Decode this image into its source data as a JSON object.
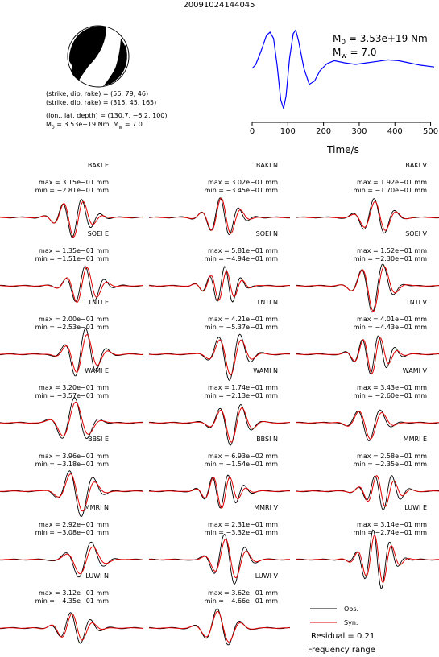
{
  "title": "20091024144045",
  "mechanism": {
    "lines": [
      "(strike, dip, rake) = (56, 79, 46)",
      "(strike, dip, rake) = (315, 45, 165)",
      "(lon., lat, depth) = (130.7, −6.2, 100)"
    ],
    "moment_line": [
      "M",
      "0",
      " = 3.53e+19 Nm, M",
      "w",
      " = 7.0"
    ]
  },
  "chart_data": {
    "type": "line",
    "xlabel": "Time/s",
    "xlim": [
      0,
      510
    ],
    "xticks": [
      0,
      100,
      200,
      300,
      400,
      500
    ],
    "color": "#0000ff",
    "annotation_moment": [
      "M",
      "0",
      " = 3.53e+19 Nm"
    ],
    "annotation_magnitude": [
      "M",
      "w",
      " = 7.0"
    ],
    "x": [
      0,
      10,
      25,
      40,
      50,
      60,
      70,
      80,
      88,
      95,
      105,
      115,
      122,
      130,
      145,
      160,
      175,
      190,
      210,
      230,
      260,
      290,
      320,
      350,
      380,
      410,
      440,
      470,
      510
    ],
    "values": [
      0,
      0.1,
      0.47,
      0.89,
      0.98,
      0.81,
      0.09,
      -0.85,
      -1.09,
      -0.75,
      0.28,
      0.94,
      1.04,
      0.75,
      0,
      -0.43,
      -0.34,
      -0.06,
      0.13,
      0.21,
      0.15,
      0.11,
      0.15,
      0.19,
      0.23,
      0.21,
      0.15,
      0.09,
      0.04
    ]
  },
  "panels": [
    [
      {
        "name": "BAKI E",
        "max": "max = 3.15e−01 mm",
        "min": "min = −2.81e−01 mm"
      },
      {
        "name": "SOEI E",
        "max": "max = 1.35e−01 mm",
        "min": "min = −1.51e−01 mm"
      },
      {
        "name": "TNTI E",
        "max": "max = 2.00e−01 mm",
        "min": "min = −2.53e−01 mm"
      },
      {
        "name": "WAMI E",
        "max": "max = 3.20e−01 mm",
        "min": "min = −3.57e−01 mm"
      },
      {
        "name": "BBSI E",
        "max": "max = 3.96e−01 mm",
        "min": "min = −3.18e−01 mm"
      },
      {
        "name": "MMRI N",
        "max": "max = 2.92e−01 mm",
        "min": "min = −3.08e−01 mm"
      },
      {
        "name": "LUWI N",
        "max": "max = 3.12e−01 mm",
        "min": "min = −4.35e−01 mm"
      }
    ],
    [
      {
        "name": "BAKI N",
        "max": "max = 3.02e−01 mm",
        "min": "min = −3.45e−01 mm"
      },
      {
        "name": "SOEI N",
        "max": "max = 5.81e−01 mm",
        "min": "min = −4.94e−01 mm"
      },
      {
        "name": "TNTI N",
        "max": "max = 4.21e−01 mm",
        "min": "min = −5.37e−01 mm"
      },
      {
        "name": "WAMI N",
        "max": "max = 1.74e−01 mm",
        "min": "min = −2.13e−01 mm"
      },
      {
        "name": "BBSI N",
        "max": "max = 6.93e−02 mm",
        "min": "min = −1.54e−01 mm"
      },
      {
        "name": "MMRI V",
        "max": "max = 2.31e−01 mm",
        "min": "min = −3.32e−01 mm"
      },
      {
        "name": "LUWI V",
        "max": "max = 3.62e−01 mm",
        "min": "min = −4.66e−01 mm"
      }
    ],
    [
      {
        "name": "BAKI V",
        "max": "max = 1.92e−01 mm",
        "min": "min = −1.70e−01 mm"
      },
      {
        "name": "SOEI V",
        "max": "max = 1.52e−01 mm",
        "min": "min = −2.30e−01 mm"
      },
      {
        "name": "TNTI V",
        "max": "max = 4.01e−01 mm",
        "min": "min = −4.43e−01 mm"
      },
      {
        "name": "WAMI V",
        "max": "max = 3.43e−01 mm",
        "min": "min = −2.60e−01 mm"
      },
      {
        "name": "MMRI E",
        "max": "max = 2.58e−01 mm",
        "min": "min = −2.35e−01 mm"
      },
      {
        "name": "LUWI E",
        "max": "max = 3.14e−01 mm",
        "min": "min = −2.74e−01 mm"
      }
    ]
  ],
  "legend": {
    "observed": "Obs.",
    "synthetic": "Syn.",
    "residual": "Residual = 0.21",
    "frequency": "Frequency range"
  }
}
